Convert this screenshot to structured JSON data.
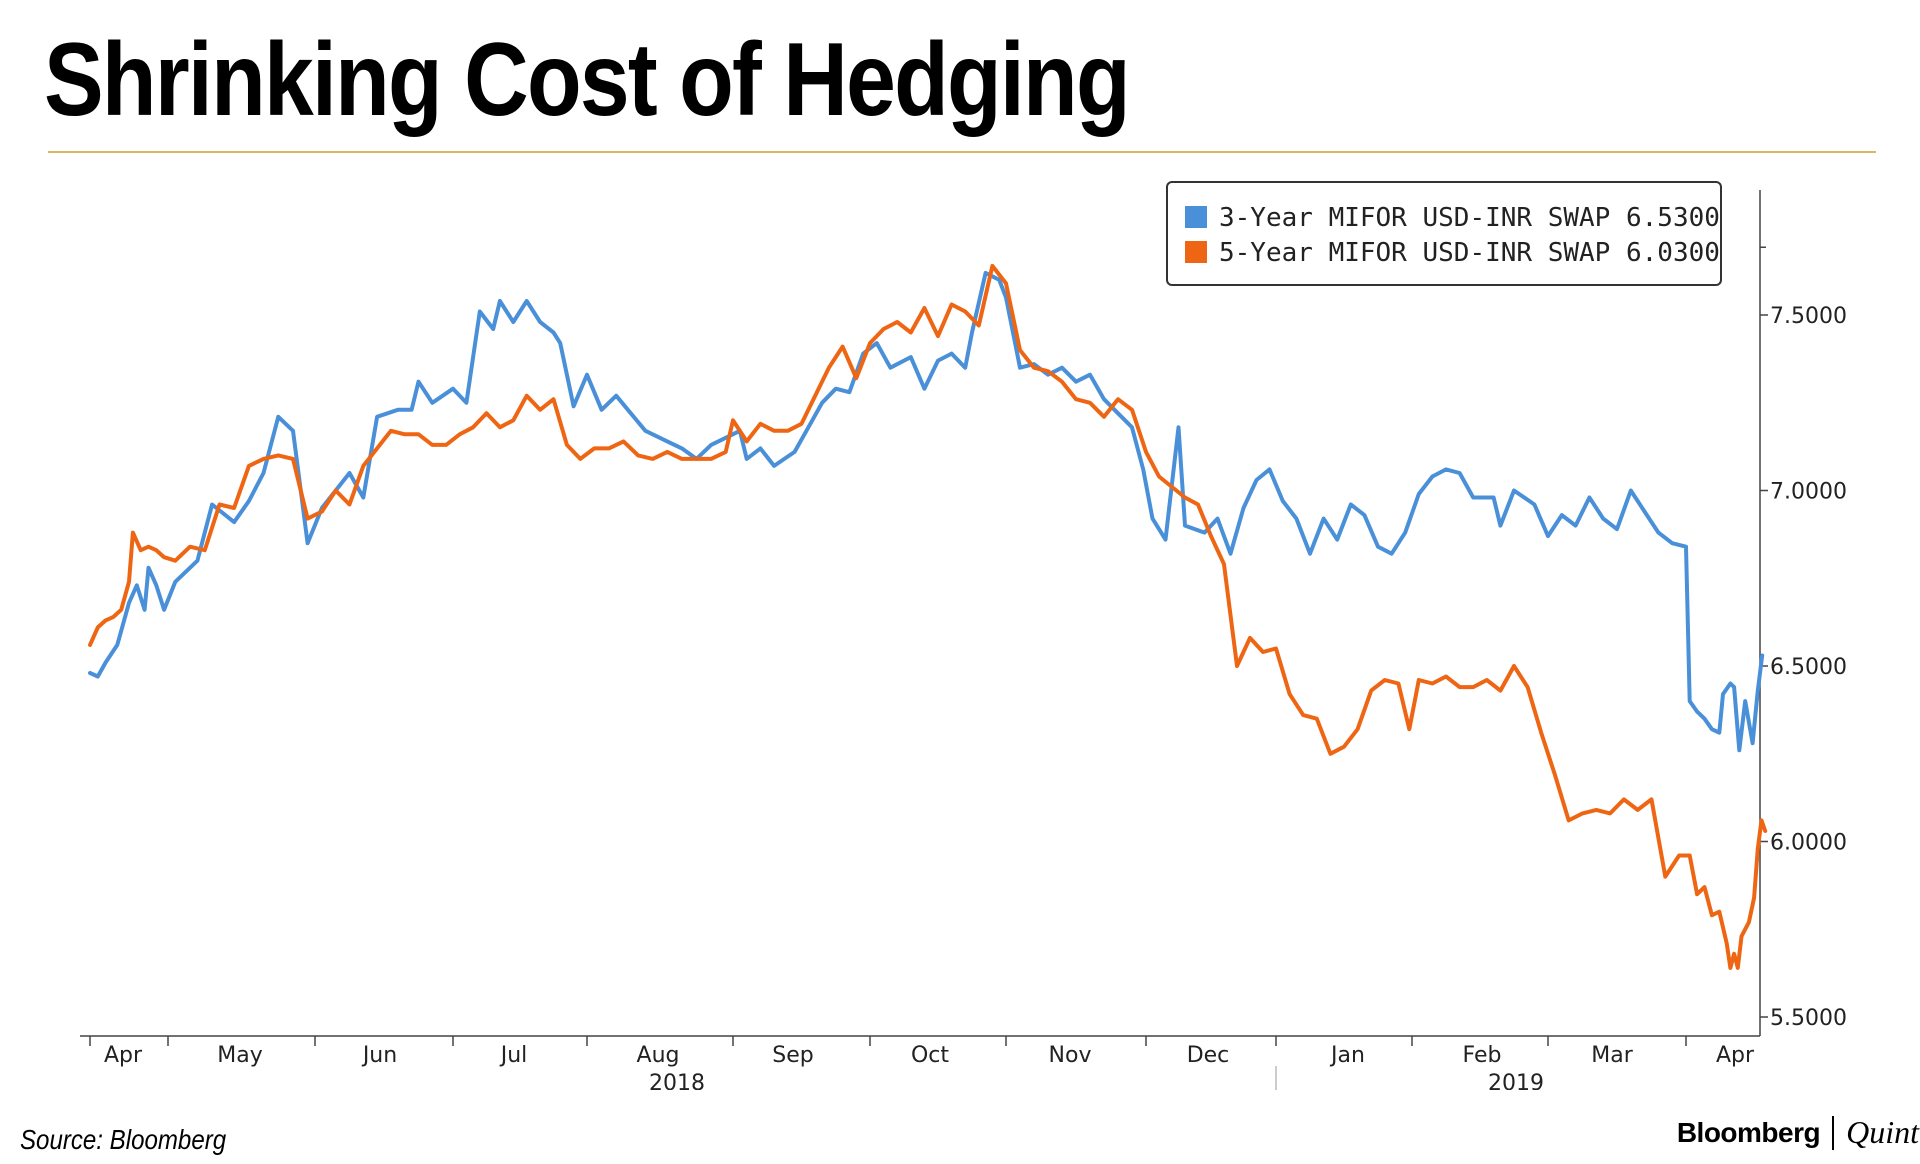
{
  "title": "Shrinking Cost of Hedging",
  "source": "Source: Bloomberg",
  "brand": {
    "name": "Bloomberg",
    "partner": "Quint"
  },
  "colors": {
    "series1": "#4a90d9",
    "series2": "#ee6613",
    "rule": "#dcb55e"
  },
  "chart_data": {
    "type": "line",
    "title": "Shrinking Cost of Hedging",
    "xlabel": "",
    "ylabel": "",
    "ylim": [
      5.5,
      7.75
    ],
    "yticks": [
      "7.5000",
      "7.0000",
      "6.5000",
      "6.0000",
      "5.5000"
    ],
    "ytick_values": [
      7.5,
      7.0,
      6.5,
      6.0,
      5.5
    ],
    "x_months": [
      "Apr",
      "May",
      "Jun",
      "Jul",
      "Aug",
      "Sep",
      "Oct",
      "Nov",
      "Dec",
      "Jan",
      "Feb",
      "Mar",
      "Apr"
    ],
    "x_years": [
      "2018",
      "2019"
    ],
    "legend_position": "top-right",
    "series": [
      {
        "name": "3-Year MIFOR USD-INR SWAP",
        "last": "6.5300",
        "color": "#4a90d9",
        "points": [
          [
            0.0,
            6.48
          ],
          [
            0.1,
            6.47
          ],
          [
            0.2,
            6.51
          ],
          [
            0.35,
            6.56
          ],
          [
            0.5,
            6.68
          ],
          [
            0.6,
            6.73
          ],
          [
            0.7,
            6.66
          ],
          [
            0.75,
            6.78
          ],
          [
            0.85,
            6.73
          ],
          [
            0.95,
            6.66
          ],
          [
            1.05,
            6.74
          ],
          [
            1.2,
            6.8
          ],
          [
            1.3,
            6.96
          ],
          [
            1.45,
            6.91
          ],
          [
            1.55,
            6.97
          ],
          [
            1.65,
            7.05
          ],
          [
            1.75,
            7.21
          ],
          [
            1.85,
            7.17
          ],
          [
            1.95,
            6.85
          ],
          [
            2.05,
            6.95
          ],
          [
            2.15,
            7.0
          ],
          [
            2.25,
            7.05
          ],
          [
            2.35,
            6.98
          ],
          [
            2.45,
            7.21
          ],
          [
            2.6,
            7.23
          ],
          [
            2.7,
            7.23
          ],
          [
            2.75,
            7.31
          ],
          [
            2.85,
            7.25
          ],
          [
            3.0,
            7.29
          ],
          [
            3.1,
            7.25
          ],
          [
            3.2,
            7.51
          ],
          [
            3.3,
            7.46
          ],
          [
            3.35,
            7.54
          ],
          [
            3.45,
            7.48
          ],
          [
            3.55,
            7.54
          ],
          [
            3.65,
            7.48
          ],
          [
            3.75,
            7.45
          ],
          [
            3.8,
            7.42
          ],
          [
            3.9,
            7.24
          ],
          [
            4.0,
            7.33
          ],
          [
            4.1,
            7.23
          ],
          [
            4.2,
            7.27
          ],
          [
            4.3,
            7.22
          ],
          [
            4.4,
            7.17
          ],
          [
            4.55,
            7.14
          ],
          [
            4.65,
            7.12
          ],
          [
            4.75,
            7.09
          ],
          [
            4.85,
            7.13
          ],
          [
            4.95,
            7.15
          ],
          [
            5.05,
            7.17
          ],
          [
            5.1,
            7.09
          ],
          [
            5.2,
            7.12
          ],
          [
            5.3,
            7.07
          ],
          [
            5.45,
            7.11
          ],
          [
            5.55,
            7.18
          ],
          [
            5.65,
            7.25
          ],
          [
            5.75,
            7.29
          ],
          [
            5.85,
            7.28
          ],
          [
            5.95,
            7.39
          ],
          [
            6.05,
            7.42
          ],
          [
            6.15,
            7.35
          ],
          [
            6.3,
            7.38
          ],
          [
            6.4,
            7.29
          ],
          [
            6.5,
            7.37
          ],
          [
            6.6,
            7.39
          ],
          [
            6.7,
            7.35
          ],
          [
            6.75,
            7.45
          ],
          [
            6.85,
            7.62
          ],
          [
            6.95,
            7.6
          ],
          [
            7.0,
            7.55
          ],
          [
            7.1,
            7.35
          ],
          [
            7.2,
            7.36
          ],
          [
            7.3,
            7.33
          ],
          [
            7.4,
            7.35
          ],
          [
            7.5,
            7.31
          ],
          [
            7.6,
            7.33
          ],
          [
            7.7,
            7.26
          ],
          [
            7.8,
            7.22
          ],
          [
            7.9,
            7.18
          ],
          [
            7.98,
            7.06
          ],
          [
            8.05,
            6.92
          ],
          [
            8.15,
            6.86
          ],
          [
            8.25,
            7.18
          ],
          [
            8.3,
            6.9
          ],
          [
            8.45,
            6.88
          ],
          [
            8.55,
            6.92
          ],
          [
            8.65,
            6.82
          ],
          [
            8.75,
            6.95
          ],
          [
            8.85,
            7.03
          ],
          [
            8.95,
            7.06
          ],
          [
            9.05,
            6.97
          ],
          [
            9.15,
            6.92
          ],
          [
            9.25,
            6.82
          ],
          [
            9.35,
            6.92
          ],
          [
            9.45,
            6.86
          ],
          [
            9.55,
            6.96
          ],
          [
            9.65,
            6.93
          ],
          [
            9.75,
            6.84
          ],
          [
            9.85,
            6.82
          ],
          [
            9.95,
            6.88
          ],
          [
            10.05,
            6.99
          ],
          [
            10.15,
            7.04
          ],
          [
            10.25,
            7.06
          ],
          [
            10.35,
            7.05
          ],
          [
            10.45,
            6.98
          ],
          [
            10.6,
            6.98
          ],
          [
            10.65,
            6.9
          ],
          [
            10.75,
            7.0
          ],
          [
            10.9,
            6.96
          ],
          [
            11.0,
            6.87
          ],
          [
            11.1,
            6.93
          ],
          [
            11.2,
            6.9
          ],
          [
            11.3,
            6.98
          ],
          [
            11.4,
            6.92
          ],
          [
            11.5,
            6.89
          ],
          [
            11.6,
            7.0
          ],
          [
            11.7,
            6.94
          ],
          [
            11.8,
            6.88
          ],
          [
            11.9,
            6.85
          ],
          [
            12.0,
            6.84
          ],
          [
            12.05,
            6.4
          ],
          [
            12.15,
            6.37
          ],
          [
            12.25,
            6.35
          ],
          [
            12.35,
            6.32
          ],
          [
            12.45,
            6.31
          ],
          [
            12.5,
            6.42
          ],
          [
            12.6,
            6.45
          ],
          [
            12.65,
            6.44
          ],
          [
            12.72,
            6.26
          ],
          [
            12.8,
            6.4
          ],
          [
            12.9,
            6.28
          ],
          [
            12.97,
            6.43
          ],
          [
            13.03,
            6.53
          ]
        ]
      },
      {
        "name": "5-Year MIFOR USD-INR SWAP",
        "last": "6.0300",
        "color": "#ee6613",
        "points": [
          [
            0.0,
            6.56
          ],
          [
            0.1,
            6.61
          ],
          [
            0.2,
            6.63
          ],
          [
            0.3,
            6.64
          ],
          [
            0.4,
            6.66
          ],
          [
            0.5,
            6.74
          ],
          [
            0.55,
            6.88
          ],
          [
            0.65,
            6.83
          ],
          [
            0.75,
            6.84
          ],
          [
            0.85,
            6.83
          ],
          [
            0.95,
            6.81
          ],
          [
            1.05,
            6.8
          ],
          [
            1.15,
            6.84
          ],
          [
            1.25,
            6.83
          ],
          [
            1.35,
            6.96
          ],
          [
            1.45,
            6.95
          ],
          [
            1.55,
            7.07
          ],
          [
            1.65,
            7.09
          ],
          [
            1.75,
            7.1
          ],
          [
            1.85,
            7.09
          ],
          [
            1.95,
            6.92
          ],
          [
            2.05,
            6.94
          ],
          [
            2.15,
            7.0
          ],
          [
            2.25,
            6.96
          ],
          [
            2.35,
            7.07
          ],
          [
            2.45,
            7.12
          ],
          [
            2.55,
            7.17
          ],
          [
            2.65,
            7.16
          ],
          [
            2.75,
            7.16
          ],
          [
            2.85,
            7.13
          ],
          [
            2.95,
            7.13
          ],
          [
            3.05,
            7.16
          ],
          [
            3.15,
            7.18
          ],
          [
            3.25,
            7.22
          ],
          [
            3.35,
            7.18
          ],
          [
            3.45,
            7.2
          ],
          [
            3.55,
            7.27
          ],
          [
            3.65,
            7.23
          ],
          [
            3.75,
            7.26
          ],
          [
            3.85,
            7.13
          ],
          [
            3.95,
            7.09
          ],
          [
            4.05,
            7.12
          ],
          [
            4.15,
            7.12
          ],
          [
            4.25,
            7.14
          ],
          [
            4.35,
            7.1
          ],
          [
            4.45,
            7.09
          ],
          [
            4.55,
            7.11
          ],
          [
            4.65,
            7.09
          ],
          [
            4.75,
            7.09
          ],
          [
            4.85,
            7.09
          ],
          [
            4.95,
            7.11
          ],
          [
            5.0,
            7.2
          ],
          [
            5.1,
            7.14
          ],
          [
            5.2,
            7.19
          ],
          [
            5.3,
            7.17
          ],
          [
            5.4,
            7.17
          ],
          [
            5.5,
            7.19
          ],
          [
            5.6,
            7.27
          ],
          [
            5.7,
            7.35
          ],
          [
            5.8,
            7.41
          ],
          [
            5.9,
            7.32
          ],
          [
            6.0,
            7.42
          ],
          [
            6.1,
            7.46
          ],
          [
            6.2,
            7.48
          ],
          [
            6.3,
            7.45
          ],
          [
            6.4,
            7.52
          ],
          [
            6.5,
            7.44
          ],
          [
            6.6,
            7.53
          ],
          [
            6.7,
            7.51
          ],
          [
            6.8,
            7.47
          ],
          [
            6.9,
            7.64
          ],
          [
            7.0,
            7.59
          ],
          [
            7.1,
            7.4
          ],
          [
            7.2,
            7.35
          ],
          [
            7.3,
            7.34
          ],
          [
            7.4,
            7.31
          ],
          [
            7.5,
            7.26
          ],
          [
            7.6,
            7.25
          ],
          [
            7.7,
            7.21
          ],
          [
            7.8,
            7.26
          ],
          [
            7.9,
            7.23
          ],
          [
            8.0,
            7.11
          ],
          [
            8.1,
            7.04
          ],
          [
            8.2,
            7.01
          ],
          [
            8.3,
            6.98
          ],
          [
            8.4,
            6.96
          ],
          [
            8.5,
            6.87
          ],
          [
            8.6,
            6.79
          ],
          [
            8.7,
            6.5
          ],
          [
            8.8,
            6.58
          ],
          [
            8.9,
            6.54
          ],
          [
            9.0,
            6.55
          ],
          [
            9.1,
            6.42
          ],
          [
            9.2,
            6.36
          ],
          [
            9.3,
            6.35
          ],
          [
            9.4,
            6.25
          ],
          [
            9.5,
            6.27
          ],
          [
            9.6,
            6.32
          ],
          [
            9.7,
            6.43
          ],
          [
            9.8,
            6.46
          ],
          [
            9.9,
            6.45
          ],
          [
            9.98,
            6.32
          ],
          [
            10.05,
            6.46
          ],
          [
            10.15,
            6.45
          ],
          [
            10.25,
            6.47
          ],
          [
            10.35,
            6.44
          ],
          [
            10.45,
            6.44
          ],
          [
            10.55,
            6.46
          ],
          [
            10.65,
            6.43
          ],
          [
            10.75,
            6.5
          ],
          [
            10.85,
            6.44
          ],
          [
            10.95,
            6.31
          ],
          [
            11.05,
            6.19
          ],
          [
            11.15,
            6.06
          ],
          [
            11.25,
            6.08
          ],
          [
            11.35,
            6.09
          ],
          [
            11.45,
            6.08
          ],
          [
            11.55,
            6.12
          ],
          [
            11.65,
            6.09
          ],
          [
            11.75,
            6.12
          ],
          [
            11.85,
            5.9
          ],
          [
            11.95,
            5.96
          ],
          [
            12.05,
            5.96
          ],
          [
            12.15,
            5.85
          ],
          [
            12.25,
            5.87
          ],
          [
            12.35,
            5.79
          ],
          [
            12.45,
            5.8
          ],
          [
            12.55,
            5.71
          ],
          [
            12.6,
            5.64
          ],
          [
            12.65,
            5.68
          ],
          [
            12.7,
            5.64
          ],
          [
            12.75,
            5.73
          ],
          [
            12.85,
            5.77
          ],
          [
            12.92,
            5.84
          ],
          [
            12.97,
            5.98
          ],
          [
            13.02,
            6.06
          ],
          [
            13.07,
            6.03
          ]
        ]
      }
    ]
  }
}
